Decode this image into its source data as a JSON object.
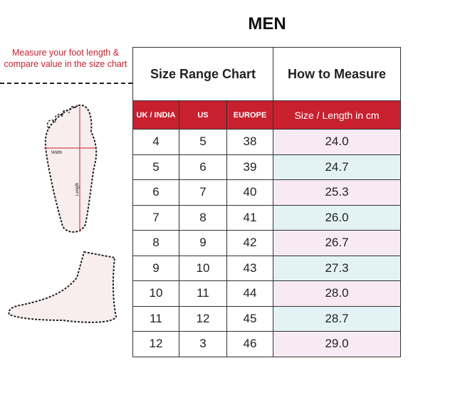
{
  "title": "MEN",
  "instruction": "Measure your foot length & compare value in the size chart",
  "diagram": {
    "width_label": "Width",
    "length_label": "Length"
  },
  "table": {
    "tab_size_range": "Size Range Chart",
    "tab_how_to_measure": "How to Measure",
    "columns": [
      "UK / INDIA",
      "US",
      "EUROPE",
      "Size / Length in cm"
    ],
    "rows": [
      [
        "4",
        "5",
        "38",
        "24.0"
      ],
      [
        "5",
        "6",
        "39",
        "24.7"
      ],
      [
        "6",
        "7",
        "40",
        "25.3"
      ],
      [
        "7",
        "8",
        "41",
        "26.0"
      ],
      [
        "8",
        "9",
        "42",
        "26.7"
      ],
      [
        "9",
        "10",
        "43",
        "27.3"
      ],
      [
        "10",
        "11",
        "44",
        "28.0"
      ],
      [
        "11",
        "12",
        "45",
        "28.7"
      ],
      [
        "12",
        "3",
        "46",
        "29.0"
      ]
    ]
  },
  "colors": {
    "accent": "#c8202f",
    "row_pink": "#f7eaf3",
    "row_blue": "#e3f3f5"
  }
}
